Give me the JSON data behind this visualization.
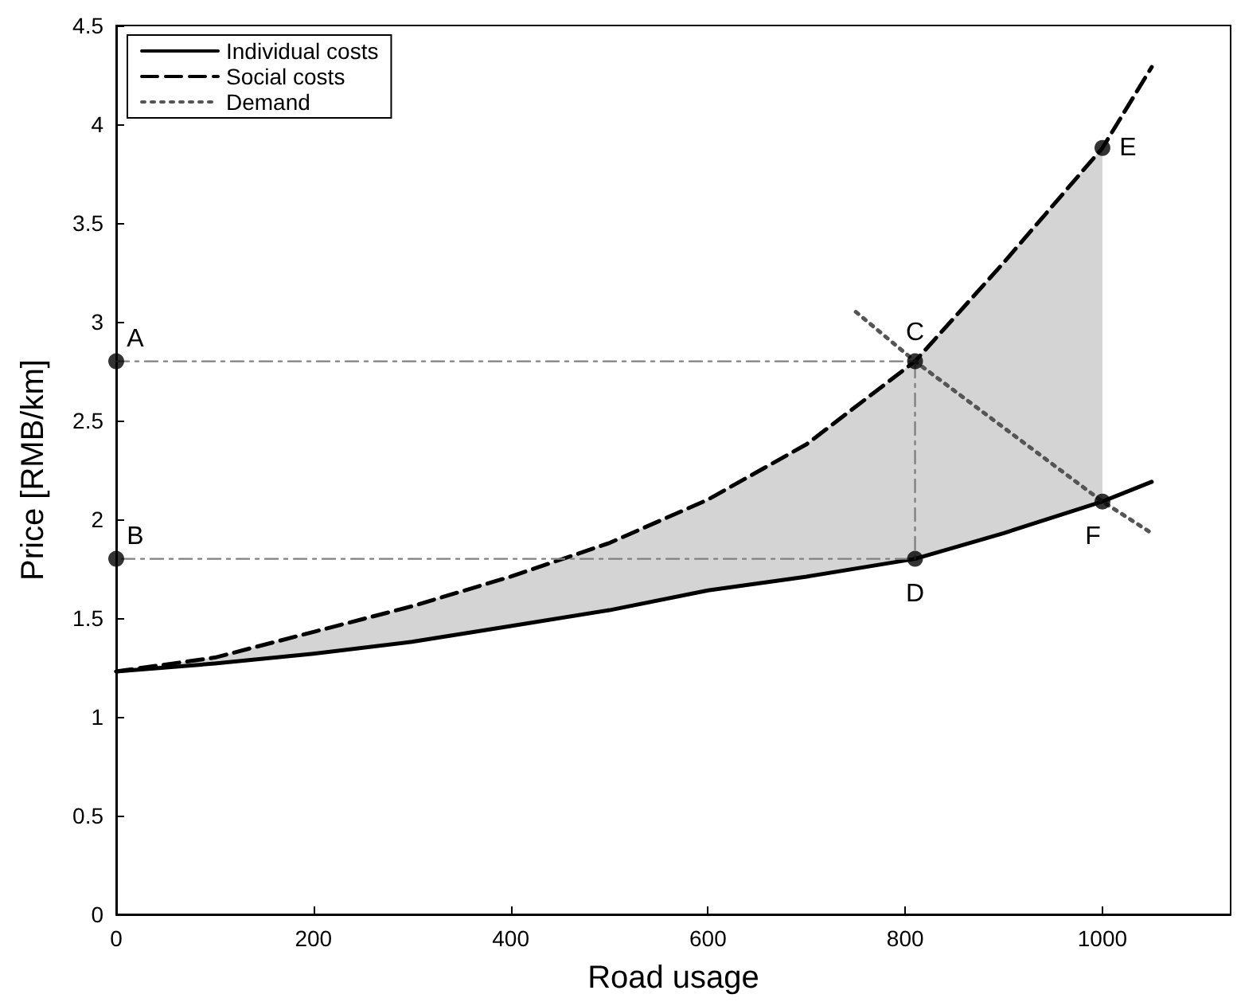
{
  "chart_data": {
    "type": "line",
    "xlabel": "Road usage",
    "ylabel": "Price [RMB/km]",
    "xlim": [
      0,
      1130
    ],
    "xticks": [
      0,
      200,
      400,
      600,
      800,
      1000
    ],
    "ylim": [
      0,
      4.5
    ],
    "yticks": [
      0,
      0.5,
      1,
      1.5,
      2,
      2.5,
      3,
      3.5,
      4,
      4.5
    ],
    "grid": false,
    "legend": "top left",
    "series": [
      {
        "name": "Individual costs",
        "color": "#000000",
        "line_style": "solid",
        "marker": "none",
        "x": [
          0,
          100,
          200,
          300,
          400,
          500,
          600,
          700,
          810,
          900,
          1000,
          1050
        ],
        "values": [
          1.23,
          1.27,
          1.32,
          1.38,
          1.46,
          1.54,
          1.64,
          1.71,
          1.8,
          1.93,
          2.09,
          2.19
        ]
      },
      {
        "name": "Social costs",
        "color": "#000000",
        "line_style": "dashed",
        "marker": "none",
        "x": [
          0,
          100,
          200,
          300,
          400,
          500,
          600,
          700,
          810,
          900,
          1000,
          1050
        ],
        "values": [
          1.23,
          1.3,
          1.43,
          1.56,
          1.71,
          1.88,
          2.1,
          2.38,
          2.8,
          3.3,
          3.88,
          4.29
        ],
        "lower": [
          1.23,
          1.27,
          1.32,
          1.38,
          1.46,
          1.54,
          1.64,
          1.71,
          1.8,
          1.93,
          2.09,
          null
        ],
        "upper": [
          1.23,
          1.3,
          1.43,
          1.56,
          1.71,
          1.88,
          2.1,
          2.38,
          2.8,
          3.3,
          3.88,
          null
        ]
      },
      {
        "name": "Demand",
        "color": "#555555",
        "line_style": "dotted",
        "marker": "none",
        "x": [
          750,
          810,
          1000,
          1050
        ],
        "values": [
          3.05,
          2.8,
          2.09,
          1.93
        ]
      },
      {
        "type": "line",
        "color": "#808080",
        "line_style": "dashed",
        "marker": "none",
        "x": [
          0,
          810,
          810,
          0
        ],
        "values": [
          2.8,
          2.8,
          1.8,
          1.8
        ]
      },
      {
        "type": "scatter",
        "color": "#000000",
        "marker": "circle",
        "x": [
          0,
          0,
          810,
          810,
          1000,
          1000
        ],
        "values": [
          2.8,
          1.8,
          2.8,
          1.8,
          3.88,
          2.09
        ]
      }
    ],
    "annotations": [
      {
        "text": "A",
        "x": 0,
        "y": 2.8
      },
      {
        "text": "B",
        "x": 0,
        "y": 1.8
      },
      {
        "text": "C",
        "x": 810,
        "y": 2.8
      },
      {
        "text": "D",
        "x": 810,
        "y": 1.8
      },
      {
        "text": "E",
        "x": 1000,
        "y": 3.88
      },
      {
        "text": "F",
        "x": 1000,
        "y": 2.09
      }
    ]
  }
}
